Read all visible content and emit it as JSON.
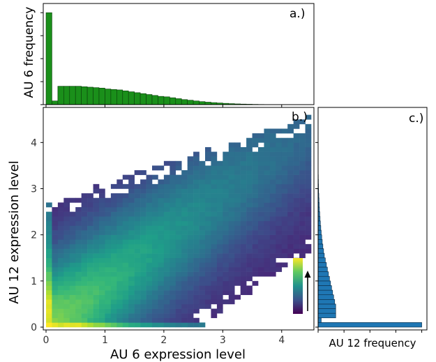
{
  "panels": {
    "a_label": "a.)",
    "b_label": "b.)",
    "c_label": "c.)"
  },
  "chart_data": [
    {
      "type": "bar",
      "panel": "a.)",
      "title": "",
      "xlabel": "",
      "ylabel": "AU 6 frequency",
      "orientation": "vertical",
      "color": "#1a8f1a",
      "edge_color": "#0a3d0a",
      "xlim": [
        0,
        4.6
      ],
      "bin_width": 0.1,
      "x_start": 0.0,
      "values": [
        100,
        4,
        20,
        20,
        20,
        20,
        19.5,
        19,
        18.5,
        18,
        17,
        16.5,
        16,
        15,
        14,
        13,
        12,
        11,
        10,
        9,
        8.5,
        7.5,
        6.5,
        5.5,
        4.8,
        4,
        3.3,
        2.7,
        2.2,
        1.8,
        1.4,
        1.1,
        0.8,
        0.6,
        0.45,
        0.3,
        0.2,
        0.12,
        0.07,
        0.04,
        0.02
      ],
      "ylim": [
        0,
        110
      ]
    },
    {
      "type": "heatmap",
      "panel": "b.)",
      "title": "",
      "xlabel": "AU 6 expression level",
      "ylabel": "AU 12 expression level",
      "xlim": [
        0,
        4.5
      ],
      "ylim": [
        0,
        4.7
      ],
      "xticks": [
        0,
        1,
        2,
        3,
        4
      ],
      "yticks": [
        0,
        1,
        2,
        3,
        4
      ],
      "tick_labels_x": [
        "0",
        "1",
        "2",
        "3",
        "4"
      ],
      "tick_labels_y": [
        "0",
        "1",
        "2",
        "3",
        "4"
      ],
      "colormap": "viridis",
      "colorbar_colors": [
        "#440154",
        "#3b528b",
        "#21918c",
        "#5ec962",
        "#fde725"
      ],
      "bin_size": 0.1,
      "density_model": "joint distribution concentrated along diagonal x≈y, high density near origin; empty region lower-right and upper-left",
      "grid": false,
      "colorbar_placement": "bottom-right inset with upward arrow"
    },
    {
      "type": "bar",
      "panel": "c.)",
      "title": "",
      "xlabel": "AU 12 frequency",
      "ylabel": "",
      "orientation": "horizontal",
      "color": "#1f77b4",
      "edge_color": "#0b2a44",
      "ylim": [
        0,
        4.7
      ],
      "bin_width": 0.1,
      "y_start": 0.0,
      "values": [
        100,
        3,
        17,
        17,
        17,
        16,
        15,
        14,
        13,
        12,
        11,
        10,
        9,
        8,
        7,
        6,
        5.3,
        4.6,
        4,
        3.5,
        3,
        2.6,
        2.2,
        1.9,
        1.6,
        1.3,
        1.1,
        0.9,
        0.7,
        0.5,
        0.4,
        0.3,
        0.22,
        0.15,
        0.1,
        0.06,
        0.03
      ],
      "xlim": [
        0,
        105
      ]
    }
  ]
}
